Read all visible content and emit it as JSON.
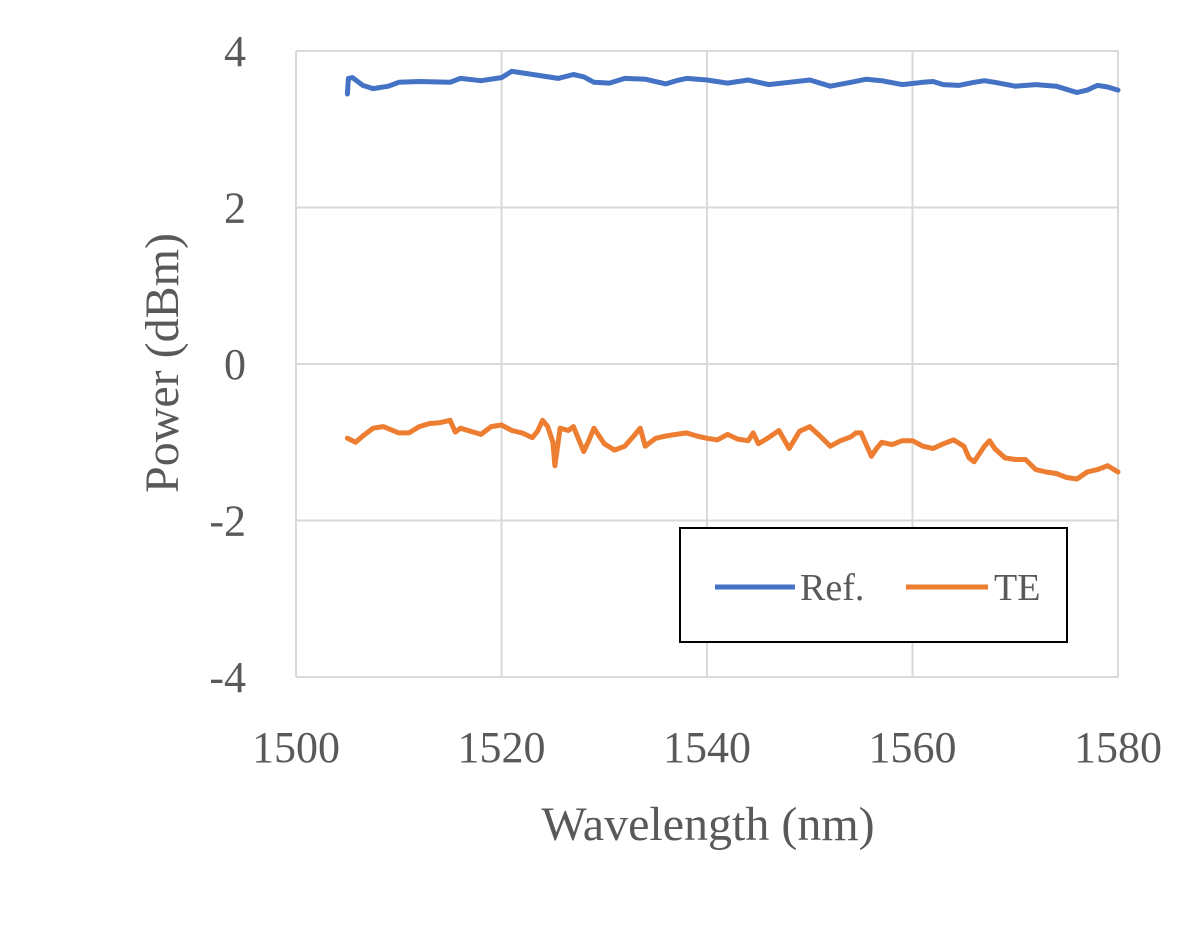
{
  "chart_data": {
    "type": "line",
    "title": "",
    "xlabel": "Wavelength (nm)",
    "ylabel": "Power (dBm)",
    "xlim": [
      1500,
      1580
    ],
    "ylim": [
      -4,
      4
    ],
    "x_ticks": [
      1500,
      1520,
      1540,
      1560,
      1580
    ],
    "y_ticks": [
      4,
      2,
      0,
      -2,
      -4
    ],
    "grid": true,
    "legend_position": "bottom-right",
    "series": [
      {
        "name": "Ref.",
        "color": "#4472c4",
        "x": [
          1505,
          1505.1,
          1505.5,
          1506.5,
          1507.5,
          1509,
          1510,
          1512,
          1515,
          1516,
          1518,
          1520,
          1521,
          1522,
          1524,
          1525.5,
          1527,
          1528,
          1529,
          1530.5,
          1532,
          1534,
          1536,
          1537,
          1538,
          1540,
          1542,
          1544,
          1546,
          1548,
          1550,
          1552,
          1554,
          1555.5,
          1557,
          1559,
          1561,
          1562,
          1563,
          1564.5,
          1566,
          1567,
          1568,
          1570,
          1572,
          1574,
          1576,
          1577,
          1578,
          1579,
          1580
        ],
        "y": [
          3.45,
          3.65,
          3.66,
          3.56,
          3.52,
          3.55,
          3.6,
          3.61,
          3.6,
          3.65,
          3.62,
          3.66,
          3.74,
          3.72,
          3.68,
          3.65,
          3.7,
          3.67,
          3.6,
          3.59,
          3.65,
          3.64,
          3.58,
          3.62,
          3.65,
          3.63,
          3.59,
          3.63,
          3.57,
          3.6,
          3.63,
          3.55,
          3.6,
          3.64,
          3.62,
          3.57,
          3.6,
          3.61,
          3.57,
          3.56,
          3.6,
          3.62,
          3.6,
          3.55,
          3.57,
          3.55,
          3.47,
          3.5,
          3.56,
          3.54,
          3.5
        ]
      },
      {
        "name": "TE",
        "color": "#ed7d31",
        "x": [
          1505,
          1505.8,
          1506.5,
          1507.5,
          1508.5,
          1510,
          1511,
          1512,
          1513,
          1514,
          1515,
          1515.5,
          1516,
          1517,
          1518,
          1519,
          1520,
          1521,
          1522,
          1523,
          1523.5,
          1524,
          1524.5,
          1525,
          1525.2,
          1525.7,
          1526.5,
          1527,
          1528,
          1528.5,
          1529,
          1530,
          1531,
          1532,
          1533,
          1533.5,
          1534,
          1535,
          1536,
          1537,
          1538,
          1539,
          1540,
          1541,
          1542,
          1543,
          1544,
          1544.5,
          1545,
          1546,
          1547,
          1548,
          1549,
          1550,
          1551,
          1552,
          1553,
          1554,
          1554.5,
          1555,
          1556,
          1556.5,
          1557,
          1558,
          1559,
          1560,
          1561,
          1562,
          1563,
          1564,
          1565,
          1565.5,
          1566,
          1567,
          1567.5,
          1568,
          1569,
          1570,
          1571,
          1572,
          1573,
          1574,
          1575,
          1576,
          1577,
          1578,
          1579,
          1580
        ],
        "y": [
          -0.95,
          -1.0,
          -0.92,
          -0.82,
          -0.8,
          -0.88,
          -0.88,
          -0.8,
          -0.76,
          -0.75,
          -0.72,
          -0.87,
          -0.82,
          -0.86,
          -0.9,
          -0.8,
          -0.78,
          -0.85,
          -0.88,
          -0.94,
          -0.86,
          -0.72,
          -0.8,
          -1.0,
          -1.3,
          -0.82,
          -0.85,
          -0.8,
          -1.12,
          -0.98,
          -0.82,
          -1.02,
          -1.1,
          -1.05,
          -0.9,
          -0.82,
          -1.05,
          -0.95,
          -0.92,
          -0.9,
          -0.88,
          -0.92,
          -0.95,
          -0.97,
          -0.9,
          -0.96,
          -0.98,
          -0.88,
          -1.02,
          -0.94,
          -0.85,
          -1.08,
          -0.86,
          -0.8,
          -0.92,
          -1.05,
          -0.98,
          -0.93,
          -0.88,
          -0.88,
          -1.18,
          -1.08,
          -1.0,
          -1.03,
          -0.98,
          -0.98,
          -1.05,
          -1.08,
          -1.02,
          -0.97,
          -1.05,
          -1.2,
          -1.25,
          -1.05,
          -0.98,
          -1.08,
          -1.2,
          -1.22,
          -1.22,
          -1.35,
          -1.38,
          -1.4,
          -1.45,
          -1.47,
          -1.38,
          -1.35,
          -1.3,
          -1.38
        ]
      }
    ]
  }
}
